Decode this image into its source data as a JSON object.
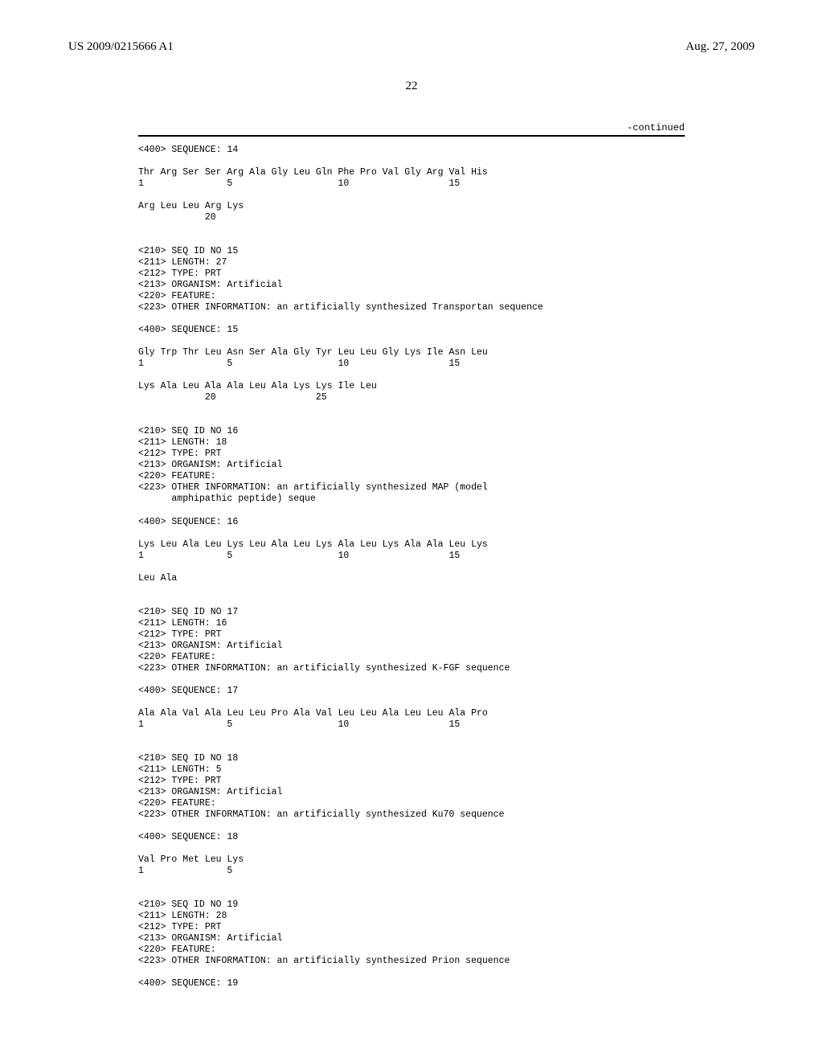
{
  "header": {
    "left": "US 2009/0215666 A1",
    "right": "Aug. 27, 2009"
  },
  "pageNumber": "22",
  "continuedLabel": "-continued",
  "seq14": {
    "headerLine": "<400> SEQUENCE: 14",
    "line1": "Thr Arg Ser Ser Arg Ala Gly Leu Gln Phe Pro Val Gly Arg Val His",
    "nums1": "1               5                   10                  15",
    "line2": "Arg Leu Leu Arg Lys",
    "nums2": "            20"
  },
  "seq15": {
    "m1": "<210> SEQ ID NO 15",
    "m2": "<211> LENGTH: 27",
    "m3": "<212> TYPE: PRT",
    "m4": "<213> ORGANISM: Artificial",
    "m5": "<220> FEATURE:",
    "m6": "<223> OTHER INFORMATION: an artificially synthesized Transportan sequence",
    "headerLine": "<400> SEQUENCE: 15",
    "line1": "Gly Trp Thr Leu Asn Ser Ala Gly Tyr Leu Leu Gly Lys Ile Asn Leu",
    "nums1": "1               5                   10                  15",
    "line2": "Lys Ala Leu Ala Ala Leu Ala Lys Lys Ile Leu",
    "nums2": "            20                  25"
  },
  "seq16": {
    "m1": "<210> SEQ ID NO 16",
    "m2": "<211> LENGTH: 18",
    "m3": "<212> TYPE: PRT",
    "m4": "<213> ORGANISM: Artificial",
    "m5": "<220> FEATURE:",
    "m6": "<223> OTHER INFORMATION: an artificially synthesized MAP (model",
    "m6b": "      amphipathic peptide) seque",
    "headerLine": "<400> SEQUENCE: 16",
    "line1": "Lys Leu Ala Leu Lys Leu Ala Leu Lys Ala Leu Lys Ala Ala Leu Lys",
    "nums1": "1               5                   10                  15",
    "line2": "Leu Ala"
  },
  "seq17": {
    "m1": "<210> SEQ ID NO 17",
    "m2": "<211> LENGTH: 16",
    "m3": "<212> TYPE: PRT",
    "m4": "<213> ORGANISM: Artificial",
    "m5": "<220> FEATURE:",
    "m6": "<223> OTHER INFORMATION: an artificially synthesized K-FGF sequence",
    "headerLine": "<400> SEQUENCE: 17",
    "line1": "Ala Ala Val Ala Leu Leu Pro Ala Val Leu Leu Ala Leu Leu Ala Pro",
    "nums1": "1               5                   10                  15"
  },
  "seq18": {
    "m1": "<210> SEQ ID NO 18",
    "m2": "<211> LENGTH: 5",
    "m3": "<212> TYPE: PRT",
    "m4": "<213> ORGANISM: Artificial",
    "m5": "<220> FEATURE:",
    "m6": "<223> OTHER INFORMATION: an artificially synthesized Ku70 sequence",
    "headerLine": "<400> SEQUENCE: 18",
    "line1": "Val Pro Met Leu Lys",
    "nums1": "1               5"
  },
  "seq19": {
    "m1": "<210> SEQ ID NO 19",
    "m2": "<211> LENGTH: 28",
    "m3": "<212> TYPE: PRT",
    "m4": "<213> ORGANISM: Artificial",
    "m5": "<220> FEATURE:",
    "m6": "<223> OTHER INFORMATION: an artificially synthesized Prion sequence",
    "headerLine": "<400> SEQUENCE: 19"
  }
}
